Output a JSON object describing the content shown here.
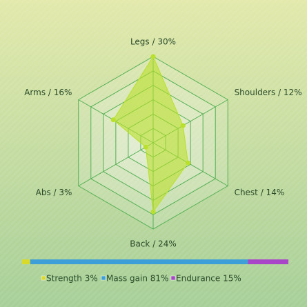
{
  "chart_data": [
    {
      "type": "radar",
      "categories": [
        "Legs / 30%",
        "Shoulders / 12%",
        "Chest / 14%",
        "Back / 24%",
        "Abs / 3%",
        "Arms / 16%"
      ],
      "values": [
        30,
        12,
        14,
        24,
        3,
        16
      ],
      "color": "#b9e02a",
      "rlim": [
        0,
        30
      ],
      "rticks": [
        5,
        10,
        15,
        20,
        25,
        30
      ],
      "grid": true
    },
    {
      "type": "stacked-bar",
      "series": [
        {
          "name": "Strength 3%",
          "color": "#d9d92e",
          "values": [
            3
          ]
        },
        {
          "name": "Mass gain 81%",
          "color": "#3d9fd6",
          "values": [
            81
          ]
        },
        {
          "name": "Endurance 15%",
          "color": "#a945c9",
          "values": [
            15
          ]
        }
      ]
    }
  ]
}
